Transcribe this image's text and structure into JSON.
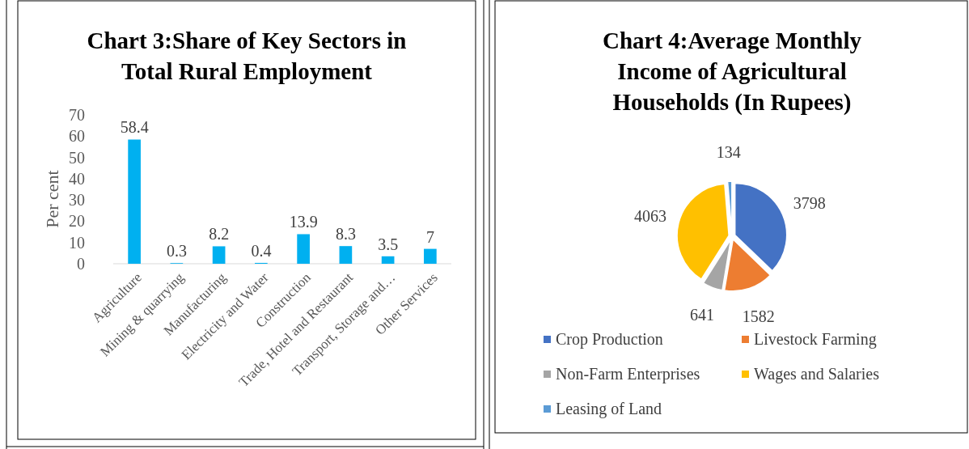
{
  "chart_data": [
    {
      "type": "bar",
      "title": "Chart 3:Share of Key Sectors in Total Rural Employment",
      "ylabel": "Per cent",
      "categories": [
        "Agriculture",
        "Mining & quarrying",
        "Manufacturing",
        "Electricity and Water",
        "Construction",
        "Trade, Hotel and Restaurant",
        "Transport, Storage and…",
        "Other Services"
      ],
      "values": [
        58.4,
        0.3,
        8.2,
        0.4,
        13.9,
        8.3,
        3.5,
        7
      ],
      "color": "#00b0f0",
      "ylim": [
        0,
        70
      ],
      "yticks": [
        0,
        10,
        20,
        30,
        40,
        50,
        60,
        70
      ],
      "grid": false,
      "data_labels": true
    },
    {
      "type": "pie",
      "title": "Chart 4:Average Monthly Income of Agricultural Households (In Rupees)",
      "categories": [
        "Crop Production",
        "Livestock Farming",
        "Non-Farm Enterprises",
        "Wages and Salaries",
        "Leasing of Land"
      ],
      "values": [
        3798,
        1582,
        641,
        4063,
        134
      ],
      "colors": [
        "#4472c4",
        "#ed7d31",
        "#a5a5a5",
        "#ffc000",
        "#5b9bd5"
      ],
      "data_labels": true,
      "legend": "bottom"
    }
  ]
}
